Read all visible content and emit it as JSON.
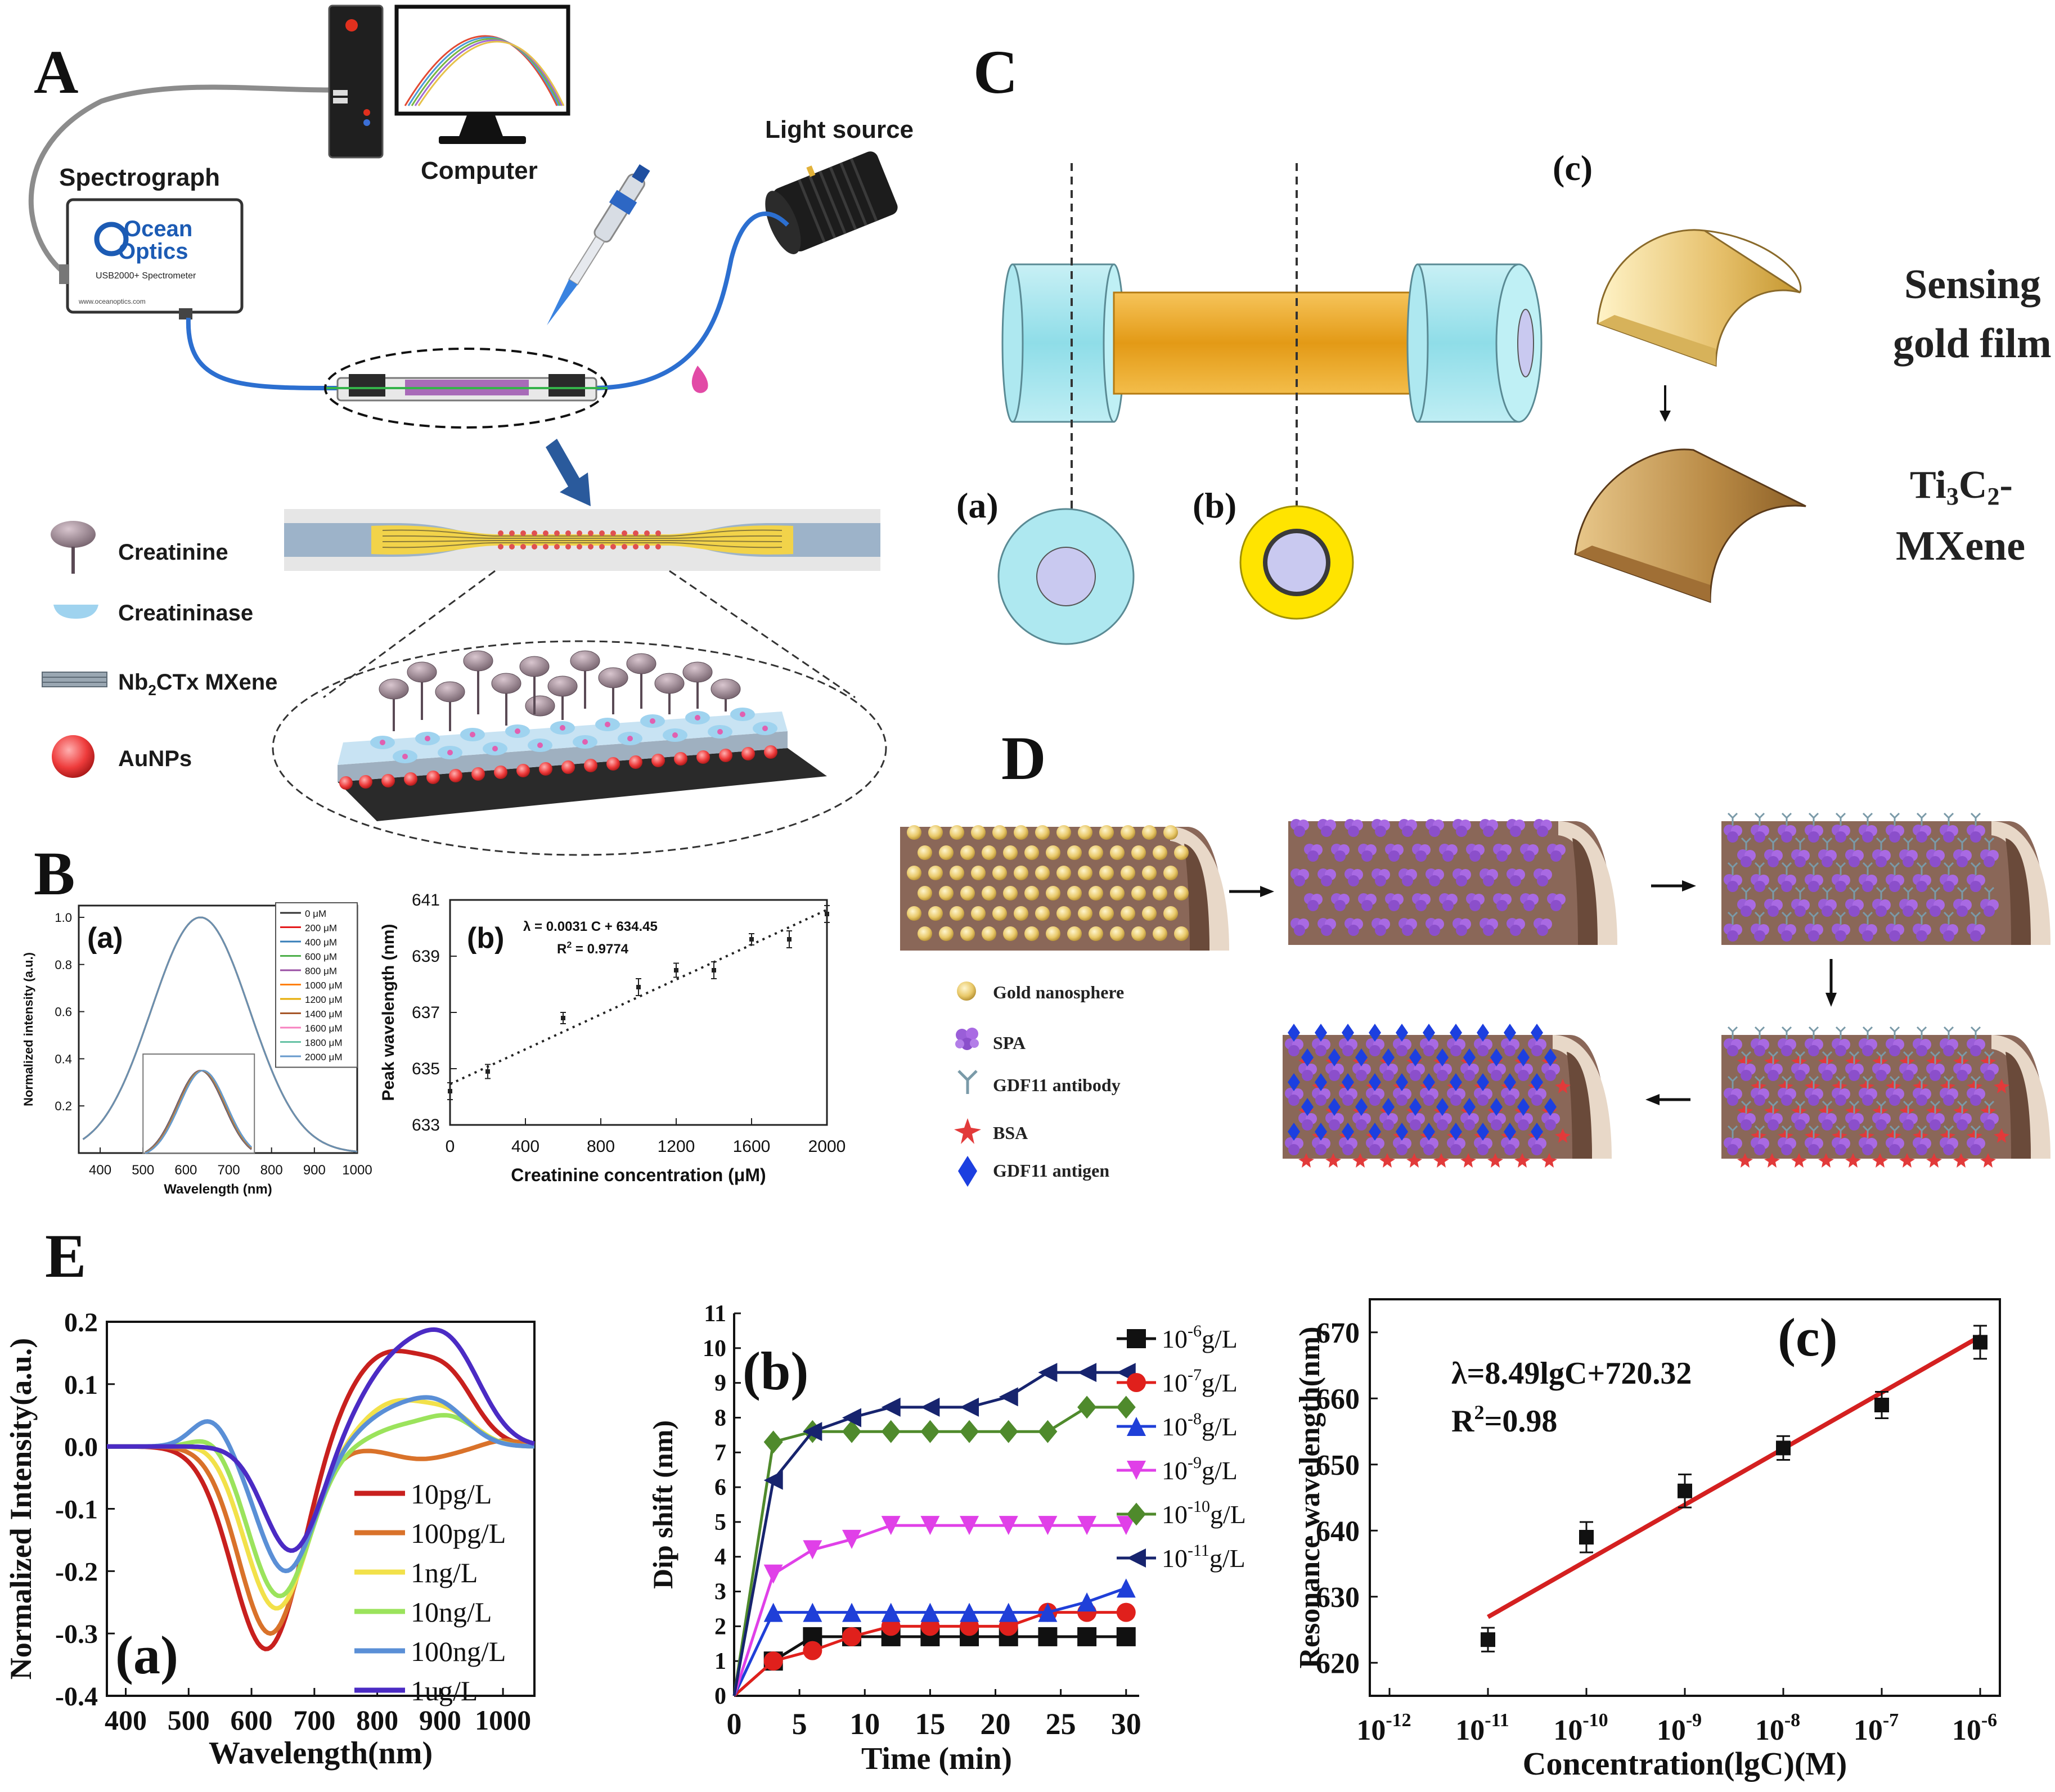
{
  "panels": {
    "A": {
      "letter": "A",
      "labels": {
        "spectrograph": "Spectrograph",
        "computer": "Computer",
        "light_source": "Light source",
        "brand_line1": "Ocean",
        "brand_line2": "Optics",
        "model": "USB2000+ Spectrometer",
        "website": "www.oceanoptics.com"
      },
      "legend": [
        {
          "name": "creatinine",
          "label": "Creatinine"
        },
        {
          "name": "creatininase",
          "label": "Creatininase"
        },
        {
          "name": "mxene",
          "label_main": "Nb",
          "label_sub": "2",
          "label_rest": "CTx MXene"
        },
        {
          "name": "aunps",
          "label": "AuNPs"
        }
      ]
    },
    "B": {
      "letter": "B",
      "a_label": "(a)",
      "b_label": "(b)",
      "equation": "λ = 0.0031 C + 634.45",
      "r2_main": "R",
      "r2_sup": "2",
      "r2_rest": " = 0.9774"
    },
    "C": {
      "letter": "C",
      "a_label": "(a)",
      "b_label": "(b)",
      "c_label": "(c)",
      "sensing_line1": "Sensing",
      "sensing_line2": "gold film",
      "ti_main": "Ti",
      "ti_sub1": "3",
      "ti_mid": "C",
      "ti_sub2": "2",
      "ti_end": "-",
      "mxene": "MXene"
    },
    "D": {
      "letter": "D",
      "legend": [
        {
          "name": "gold-nanosphere",
          "label": "Gold nanosphere"
        },
        {
          "name": "spa",
          "label": "SPA"
        },
        {
          "name": "gdf11-antibody",
          "label": "GDF11 antibody"
        },
        {
          "name": "bsa",
          "label": "BSA"
        },
        {
          "name": "gdf11-antigen",
          "label": "GDF11 antigen"
        }
      ]
    },
    "E": {
      "letter": "E",
      "a_label": "(a)",
      "b_label": "(b)",
      "c_label": "(c)",
      "equation": "λ=8.49lgC+720.32",
      "r2_main": "R",
      "r2_sup": "2",
      "r2_rest": "=0.98"
    }
  },
  "chart_data": [
    {
      "id": "B-a",
      "type": "line",
      "title": "",
      "xlabel": "Wavelength (nm)",
      "ylabel": "Normalized intensity (a.u.)",
      "xlim": [
        350,
        1000
      ],
      "ylim": [
        0,
        1.05
      ],
      "xticks": [
        400,
        500,
        600,
        700,
        800,
        900,
        1000
      ],
      "yticks": [
        0.2,
        0.4,
        0.6,
        0.8,
        1.0
      ],
      "ytick_labels": [
        "0.2",
        "0.4",
        "0.6",
        "0.8",
        "1.0"
      ],
      "legend": [
        "0 μM",
        "200 μM",
        "400 μM",
        "600 μM",
        "800 μM",
        "1000 μM",
        "1200 μM",
        "1400 μM",
        "1600 μM",
        "1800 μM",
        "2000 μM"
      ],
      "colors": [
        "#333333",
        "#e41a1c",
        "#377eb8",
        "#4daf4a",
        "#984ea3",
        "#ff7f00",
        "#e6ab02",
        "#a65628",
        "#f781bf",
        "#66c2a5",
        "#6699cc"
      ],
      "peak": 634,
      "main_width": 115,
      "inset_xlim": [
        500,
        760
      ],
      "inset_peak_height": 0.37,
      "inset_peaks": [
        634.0,
        634.6,
        635.2,
        636.2,
        636.9,
        637.6,
        638.2,
        638.5,
        639.5,
        639.8,
        640.5
      ]
    },
    {
      "id": "B-b",
      "type": "scatter",
      "xlabel": "Creatinine concentration (μM)",
      "ylabel": "Peak wavelength (nm)",
      "xlim": [
        0,
        2000
      ],
      "ylim": [
        633,
        641
      ],
      "xticks": [
        0,
        400,
        800,
        1200,
        1600,
        2000
      ],
      "yticks": [
        633,
        635,
        637,
        639,
        641
      ],
      "x": [
        0,
        200,
        600,
        1000,
        1200,
        1400,
        1600,
        1800,
        2000
      ],
      "y": [
        634.2,
        634.9,
        636.8,
        637.9,
        638.5,
        638.5,
        639.6,
        639.6,
        640.5
      ],
      "err": [
        0.3,
        0.25,
        0.2,
        0.3,
        0.25,
        0.3,
        0.2,
        0.3,
        0.3
      ],
      "fit": {
        "slope": 0.0031,
        "intercept": 634.45
      }
    },
    {
      "id": "E-a",
      "type": "line",
      "xlabel": "Wavelength(nm)",
      "ylabel": "Normalized Intensity(a.u.)",
      "xlim": [
        370,
        1050
      ],
      "ylim": [
        -0.4,
        0.2
      ],
      "xticks": [
        400,
        500,
        600,
        700,
        800,
        900,
        1000
      ],
      "yticks": [
        -0.4,
        -0.3,
        -0.2,
        -0.1,
        0.0,
        0.1,
        0.2
      ],
      "ytick_labels": [
        "-0.4",
        "-0.3",
        "-0.2",
        "-0.1",
        "0.0",
        "0.1",
        "0.2"
      ],
      "series": [
        {
          "name": "10pg/L",
          "color": "#c8201e",
          "dip": [
            625,
            -0.33,
            55
          ],
          "peaks": [
            [
              820,
              0.15,
              75
            ],
            [
              920,
              0.06,
              40
            ]
          ],
          "pre": [
            560,
            0.0,
            30
          ]
        },
        {
          "name": "100pg/L",
          "color": "#d9722a",
          "dip": [
            630,
            -0.3,
            50
          ],
          "peaks": [
            [
              870,
              -0.02,
              50
            ],
            [
              1000,
              0.01,
              30
            ]
          ],
          "pre": [
            560,
            0.0,
            30
          ]
        },
        {
          "name": "1ng/L",
          "color": "#f2e14a",
          "dip": [
            640,
            -0.26,
            50
          ],
          "peaks": [
            [
              830,
              0.07,
              55
            ],
            [
              920,
              0.04,
              40
            ]
          ],
          "pre": [
            540,
            0.01,
            30
          ]
        },
        {
          "name": "10ng/L",
          "color": "#9be35c",
          "dip": [
            645,
            -0.24,
            48
          ],
          "peaks": [
            [
              840,
              0.03,
              50
            ],
            [
              920,
              0.04,
              40
            ]
          ],
          "pre": [
            540,
            0.02,
            30
          ]
        },
        {
          "name": "100ng/L",
          "color": "#5a8fd6",
          "dip": [
            655,
            -0.2,
            45
          ],
          "peaks": [
            [
              820,
              0.05,
              50
            ],
            [
              900,
              0.06,
              45
            ]
          ],
          "pre": [
            535,
            0.045,
            30
          ]
        },
        {
          "name": "1ug/L",
          "color": "#4b2bc4",
          "dip": [
            665,
            -0.17,
            45
          ],
          "peaks": [
            [
              830,
              0.13,
              60
            ],
            [
              920,
              0.13,
              50
            ]
          ],
          "pre": [
            560,
            0.0,
            30
          ]
        }
      ]
    },
    {
      "id": "E-b",
      "type": "line",
      "xlabel": "Time (min)",
      "ylabel": "Dip shift (nm)",
      "xlim": [
        0,
        31
      ],
      "ylim": [
        0,
        11
      ],
      "xticks": [
        0,
        5,
        10,
        15,
        20,
        25,
        30
      ],
      "yticks": [
        0,
        1,
        2,
        3,
        4,
        5,
        6,
        7,
        8,
        9,
        10,
        11
      ],
      "x": [
        0,
        3,
        6,
        9,
        12,
        15,
        18,
        21,
        24,
        27,
        30
      ],
      "series": [
        {
          "name_base": "10",
          "name_exp": "-6",
          "name_unit": "g/L",
          "color": "#111111",
          "marker": "square",
          "values": [
            0,
            1.0,
            1.7,
            1.7,
            1.7,
            1.7,
            1.7,
            1.7,
            1.7,
            1.7,
            1.7
          ]
        },
        {
          "name_base": "10",
          "name_exp": "-7",
          "name_unit": "g/L",
          "color": "#e0201c",
          "marker": "circle",
          "values": [
            0,
            1.0,
            1.3,
            1.7,
            2.0,
            2.0,
            2.0,
            2.0,
            2.4,
            2.4,
            2.4
          ]
        },
        {
          "name_base": "10",
          "name_exp": "-8",
          "name_unit": "g/L",
          "color": "#1f3fd8",
          "marker": "triangle-up",
          "values": [
            0,
            2.4,
            2.4,
            2.4,
            2.4,
            2.4,
            2.4,
            2.4,
            2.4,
            2.7,
            3.1
          ]
        },
        {
          "name_base": "10",
          "name_exp": "-9",
          "name_unit": "g/L",
          "color": "#e040e8",
          "marker": "triangle-down",
          "values": [
            0,
            3.5,
            4.2,
            4.5,
            4.9,
            4.9,
            4.9,
            4.9,
            4.9,
            4.9,
            4.9
          ]
        },
        {
          "name_base": "10",
          "name_exp": "-10",
          "name_unit": "g/L",
          "color": "#4f8a2c",
          "marker": "diamond",
          "values": [
            0,
            7.3,
            7.6,
            7.6,
            7.6,
            7.6,
            7.6,
            7.6,
            7.6,
            8.3,
            8.3
          ]
        },
        {
          "name_base": "10",
          "name_exp": "-11",
          "name_unit": "g/L",
          "color": "#17246e",
          "marker": "triangle-left",
          "values": [
            0,
            6.2,
            7.6,
            8.0,
            8.3,
            8.3,
            8.3,
            8.6,
            9.3,
            9.3,
            9.3
          ]
        }
      ]
    },
    {
      "id": "E-c",
      "type": "scatter",
      "xlabel": "Concentration(lgC)(M)",
      "ylabel": "Resonance wavelength(nm)",
      "xlim": [
        -12.2,
        -5.8
      ],
      "ylim": [
        615,
        675
      ],
      "xticks": [
        -12,
        -11,
        -10,
        -9,
        -8,
        -7,
        -6
      ],
      "yticks": [
        620,
        630,
        640,
        650,
        660,
        670
      ],
      "x": [
        -11,
        -10,
        -9,
        -8,
        -7,
        -6
      ],
      "y": [
        623.5,
        639,
        646,
        652.5,
        659,
        668.5
      ],
      "err": [
        1.8,
        2.3,
        2.5,
        1.8,
        2.0,
        2.5
      ],
      "fit": {
        "slope": 8.49,
        "intercept": 720.32,
        "color": "#d42020"
      }
    }
  ]
}
